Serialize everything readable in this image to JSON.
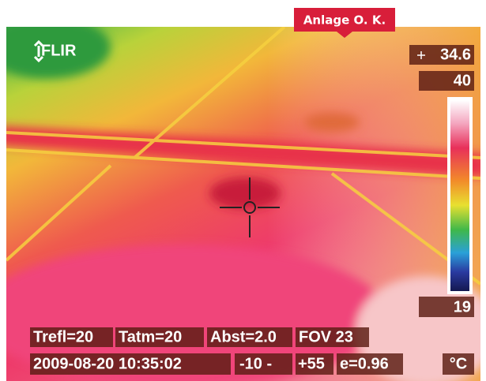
{
  "banner": "Anlage O. K.",
  "logo": "FLIR",
  "spot": {
    "value": "34.6"
  },
  "scale": {
    "max": "40",
    "min": "19",
    "unit": "°C"
  },
  "params": [
    "Trefl=20",
    "Tatm=20",
    "Abst=2.0",
    "FOV 23"
  ],
  "status": [
    "2009-08-20 10:35:02",
    "-10 -",
    "+55",
    "e=0.96"
  ]
}
